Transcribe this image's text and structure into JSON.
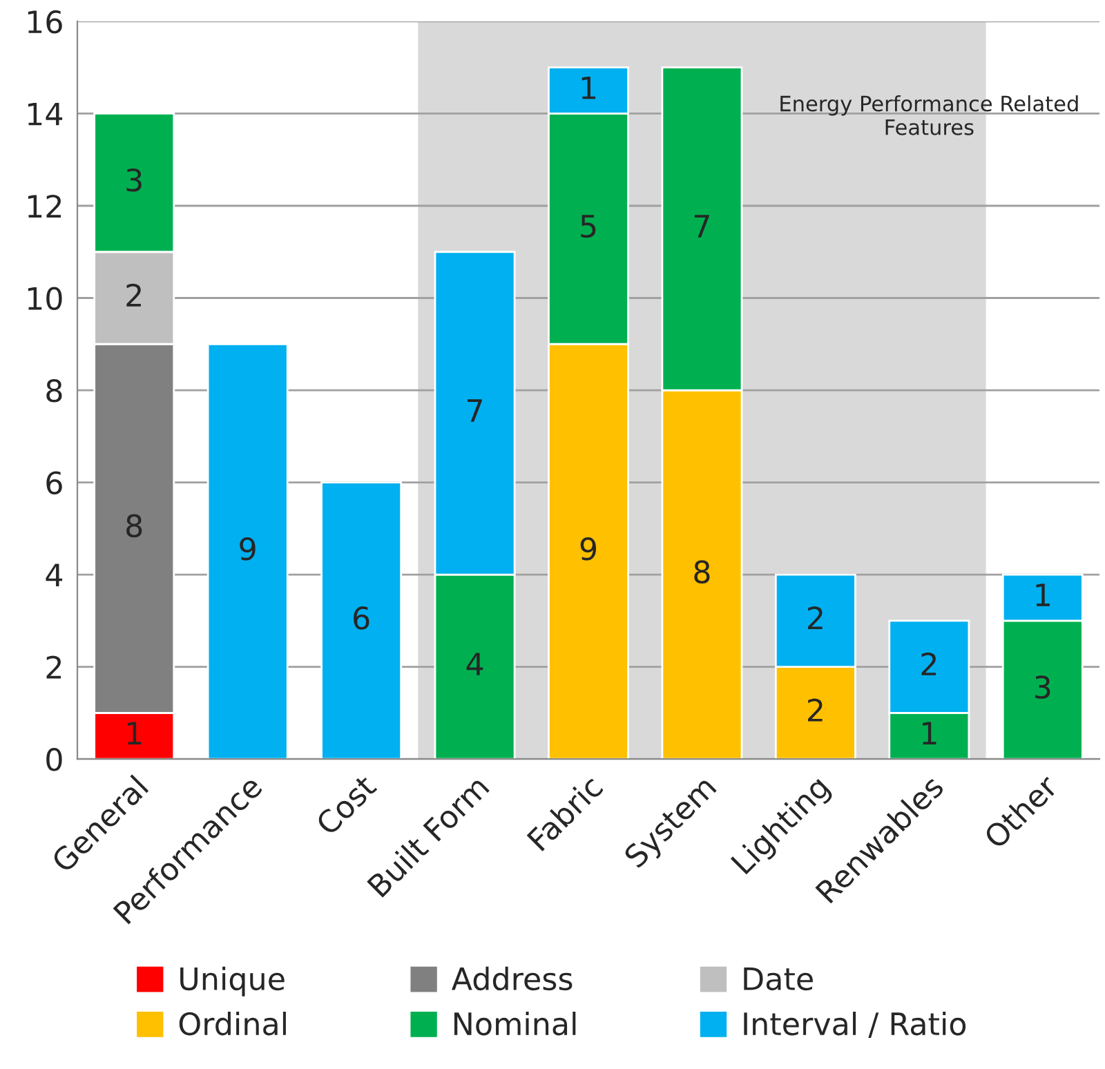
{
  "chart_data": {
    "type": "bar",
    "stacked": true,
    "categories": [
      "General",
      "Performance",
      "Cost",
      "Built Form",
      "Fabric",
      "System",
      "Lighting",
      "Renwables",
      "Other"
    ],
    "series": [
      {
        "name": "Unique",
        "color": "#ff0000",
        "values": [
          1,
          null,
          null,
          null,
          null,
          null,
          null,
          null,
          null
        ]
      },
      {
        "name": "Address",
        "color": "#808080",
        "values": [
          8,
          null,
          null,
          null,
          null,
          null,
          null,
          null,
          null
        ]
      },
      {
        "name": "Date",
        "color": "#bfbfbf",
        "values": [
          2,
          null,
          null,
          null,
          null,
          null,
          null,
          null,
          null
        ]
      },
      {
        "name": "Ordinal",
        "color": "#ffc000",
        "values": [
          null,
          null,
          null,
          null,
          9,
          8,
          2,
          null,
          null
        ]
      },
      {
        "name": "Nominal",
        "color": "#00b050",
        "values": [
          3,
          null,
          null,
          4,
          5,
          7,
          null,
          1,
          3
        ]
      },
      {
        "name": "Interval / Ratio",
        "color": "#00b0f0",
        "values": [
          null,
          9,
          6,
          7,
          1,
          null,
          2,
          2,
          1
        ]
      }
    ],
    "ylim": [
      0,
      16
    ],
    "yticks": [
      0,
      2,
      4,
      6,
      8,
      10,
      12,
      14,
      16
    ],
    "grid": "y",
    "legend": "bottom",
    "data_labels": true,
    "bands": [
      {
        "axis": "x",
        "from": "Built Form",
        "to": "Renwables",
        "label": "Energy Performance Related Features",
        "color": "#d9d9d9"
      }
    ]
  }
}
